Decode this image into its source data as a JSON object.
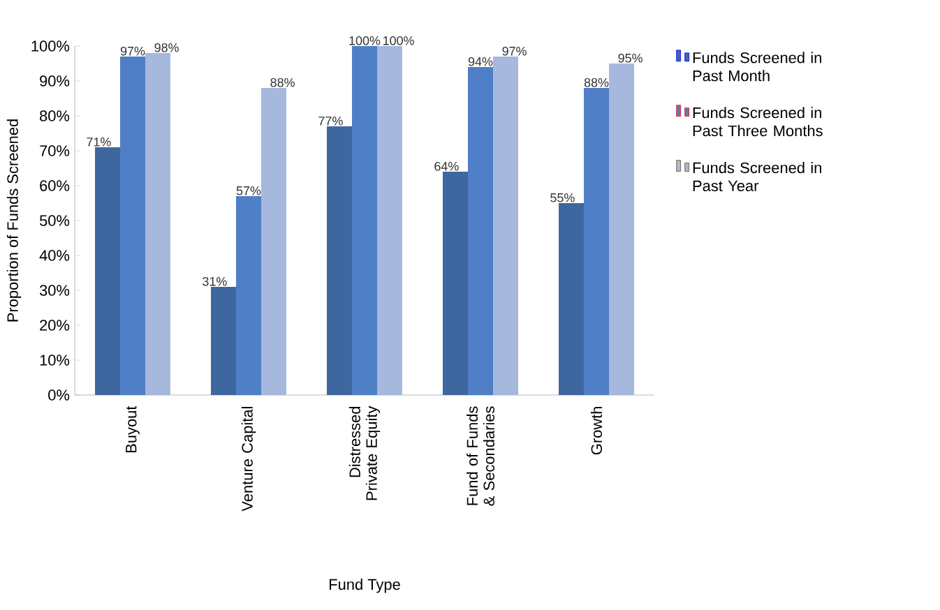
{
  "chart_data": {
    "type": "bar",
    "xlabel": "Fund Type",
    "ylabel": "Proportion of Funds Screened",
    "categories": [
      "Buyout",
      "Venture Capital",
      "Distressed Private Equity",
      "Fund of Funds & Secondaries",
      "Growth"
    ],
    "series": [
      {
        "name": "Funds Screened in Past Month",
        "color": "#3f679f",
        "values": [
          71,
          31,
          77,
          64,
          55
        ],
        "value_labels": [
          "71%",
          "31%",
          "77%",
          "64%",
          "55%"
        ]
      },
      {
        "name": "Funds Screened in Past Three Months",
        "color": "#4e7fc6",
        "values": [
          97,
          57,
          100,
          94,
          88
        ],
        "value_labels": [
          "97%",
          "57%",
          "100%",
          "94%",
          "88%"
        ]
      },
      {
        "name": "Funds Screened in Past Year",
        "color": "#a6b8dd",
        "values": [
          98,
          88,
          100,
          97,
          95
        ],
        "value_labels": [
          "98%",
          "88%",
          "100%",
          "97%",
          "95%"
        ]
      }
    ],
    "ylim": [
      0,
      100
    ],
    "yticks": [
      {
        "value": 0,
        "label": "0%"
      },
      {
        "value": 10,
        "label": "10%"
      },
      {
        "value": 20,
        "label": "20%"
      },
      {
        "value": 30,
        "label": "30%"
      },
      {
        "value": 40,
        "label": "40%"
      },
      {
        "value": 50,
        "label": "50%"
      },
      {
        "value": 60,
        "label": "60%"
      },
      {
        "value": 70,
        "label": "70%"
      },
      {
        "value": 80,
        "label": "80%"
      },
      {
        "value": 90,
        "label": "90%"
      },
      {
        "value": 100,
        "label": "100%"
      }
    ],
    "grid": false,
    "legend": "right"
  }
}
